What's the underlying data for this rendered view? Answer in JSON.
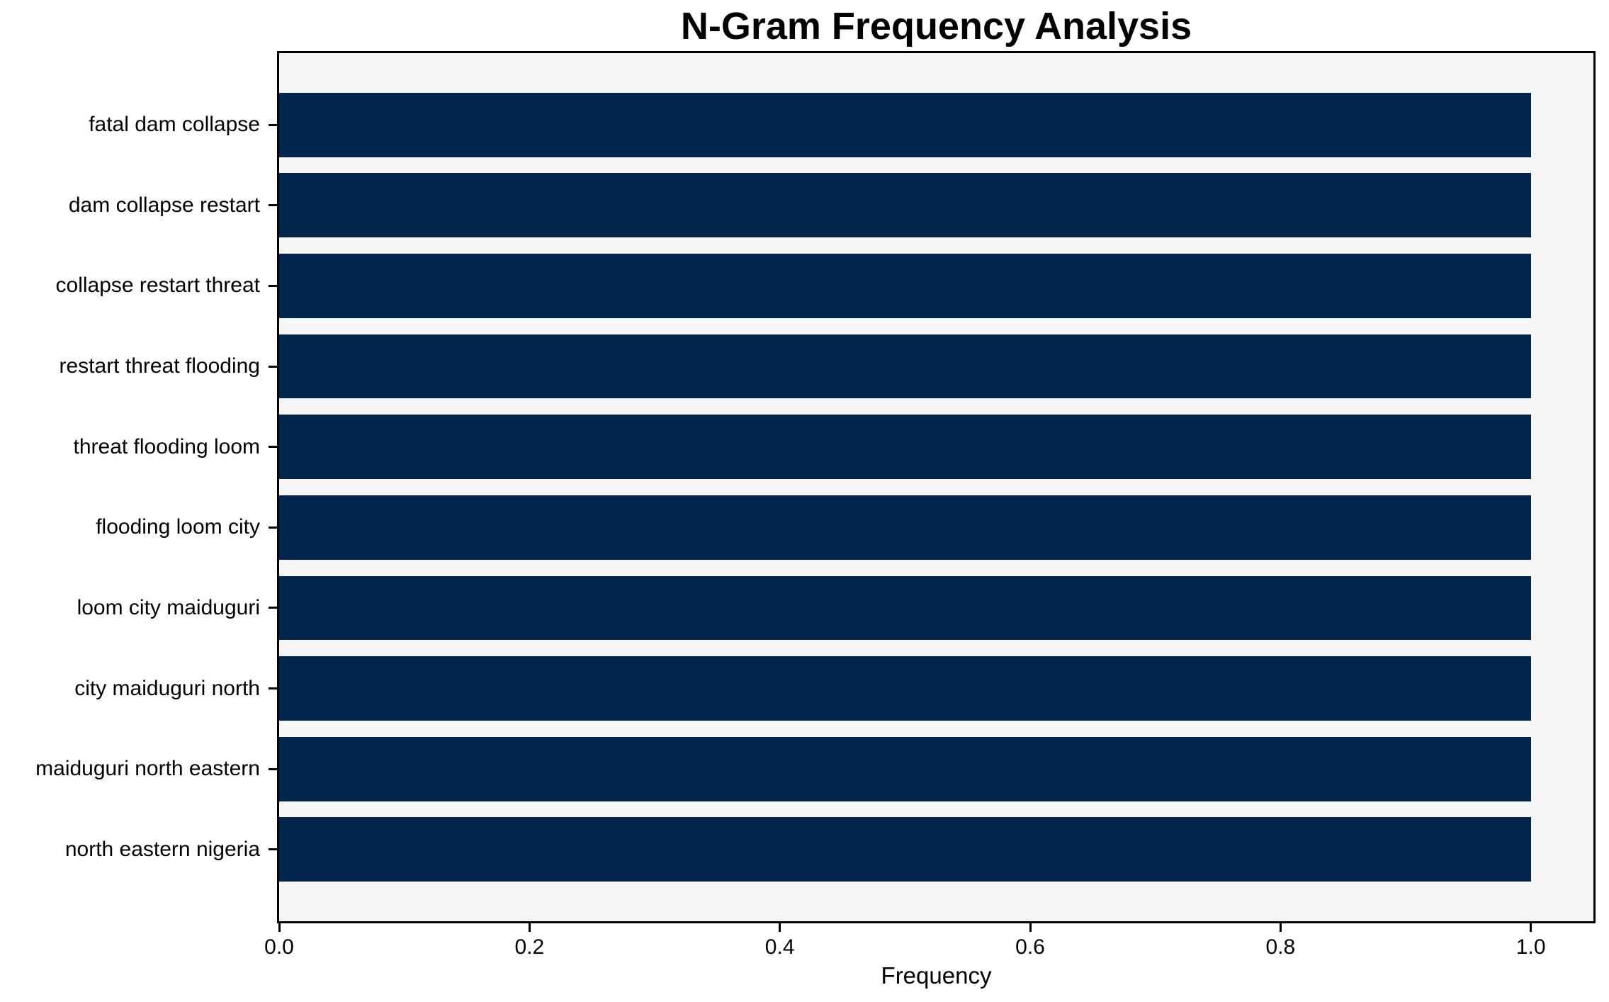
{
  "title": "N-Gram Frequency Analysis",
  "chart_data": {
    "type": "bar",
    "orientation": "horizontal",
    "title": "N-Gram Frequency Analysis",
    "xlabel": "Frequency",
    "ylabel": "",
    "categories": [
      "fatal dam collapse",
      "dam collapse restart",
      "collapse restart threat",
      "restart threat flooding",
      "threat flooding loom",
      "flooding loom city",
      "loom city maiduguri",
      "city maiduguri north",
      "maiduguri north eastern",
      "north eastern nigeria"
    ],
    "values": [
      1.0,
      1.0,
      1.0,
      1.0,
      1.0,
      1.0,
      1.0,
      1.0,
      1.0,
      1.0
    ],
    "xticks": [
      0.0,
      0.2,
      0.4,
      0.6,
      0.8,
      1.0
    ],
    "xtick_labels": [
      "0.0",
      "0.2",
      "0.4",
      "0.6",
      "0.8",
      "1.0"
    ],
    "xlim": [
      0,
      1.05
    ],
    "grid": false,
    "legend": null,
    "colors": {
      "bar": "#02254e",
      "plot_background": "#f6f6f7",
      "figure_background": "#ffffff",
      "spine": "#000000",
      "text": "#000000"
    }
  }
}
